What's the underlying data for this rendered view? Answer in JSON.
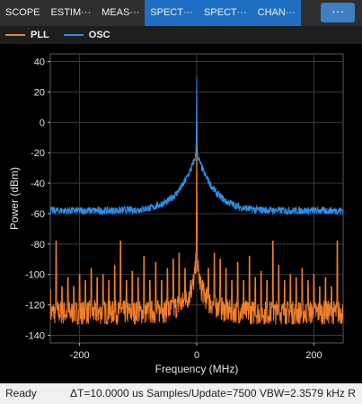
{
  "tabs": [
    {
      "label": "SCOPE",
      "active": false
    },
    {
      "label": "ESTIM···",
      "active": false
    },
    {
      "label": "MEAS···",
      "active": false
    },
    {
      "label": "SPECT···",
      "active": true
    },
    {
      "label": "SPECT···",
      "active": true
    },
    {
      "label": "CHAN···",
      "active": true
    }
  ],
  "more_button": {
    "label": "···"
  },
  "legend": [
    {
      "name": "PLL",
      "color": "#f07f2a"
    },
    {
      "name": "OSC",
      "color": "#2f8ee6"
    }
  ],
  "status": {
    "state": "Ready",
    "info": "ΔT=10.0000 us  Samples/Update=7500  VBW=2.3579 kHz  R"
  },
  "chart_data": {
    "type": "line",
    "xlabel": "Frequency (MHz)",
    "ylabel": "Power (dBm)",
    "xlim": [
      -250,
      250
    ],
    "ylim": [
      -145,
      45
    ],
    "xticks": [
      -200,
      0,
      200
    ],
    "yticks": [
      40,
      20,
      0,
      -20,
      -40,
      -60,
      -80,
      -100,
      -120,
      -140
    ],
    "grid": true,
    "background": "#000000",
    "series": [
      {
        "name": "OSC",
        "color": "#2f8ee6",
        "noise_floor": -58,
        "x": [
          -250,
          -200,
          -150,
          -100,
          -75,
          -50,
          -35,
          -25,
          -15,
          -8,
          -3,
          -1,
          0,
          1,
          3,
          8,
          15,
          25,
          35,
          50,
          75,
          100,
          150,
          200,
          250
        ],
        "y": [
          -58,
          -58,
          -58,
          -57.5,
          -56,
          -52,
          -47,
          -42,
          -35,
          -29,
          -24,
          -19,
          30,
          -19,
          -24,
          -29,
          -35,
          -42,
          -47,
          -52,
          -56,
          -57.5,
          -58,
          -58,
          -58
        ]
      },
      {
        "name": "PLL",
        "color": "#f07f2a",
        "noise_floor": -125,
        "x": [
          -250,
          -200,
          -100,
          -50,
          -20,
          -8,
          -3,
          -1,
          0,
          1,
          3,
          8,
          20,
          50,
          100,
          200,
          250
        ],
        "y": [
          -125,
          -125,
          -125,
          -124,
          -118,
          -110,
          -100,
          -90,
          0,
          -90,
          -100,
          -110,
          -118,
          -124,
          -125,
          -125,
          -125
        ],
        "spurs": [
          {
            "x": -250,
            "y": -110
          },
          {
            "x": -240,
            "y": -78
          },
          {
            "x": -230,
            "y": -108
          },
          {
            "x": -220,
            "y": -102
          },
          {
            "x": -210,
            "y": -108
          },
          {
            "x": -200,
            "y": -100
          },
          {
            "x": -190,
            "y": -104
          },
          {
            "x": -180,
            "y": -96
          },
          {
            "x": -170,
            "y": -102
          },
          {
            "x": -160,
            "y": -100
          },
          {
            "x": -150,
            "y": -104
          },
          {
            "x": -140,
            "y": -94
          },
          {
            "x": -130,
            "y": -78
          },
          {
            "x": -120,
            "y": -104
          },
          {
            "x": -110,
            "y": -98
          },
          {
            "x": -100,
            "y": -102
          },
          {
            "x": -90,
            "y": -88
          },
          {
            "x": -80,
            "y": -104
          },
          {
            "x": -70,
            "y": -92
          },
          {
            "x": -60,
            "y": -104
          },
          {
            "x": -50,
            "y": -96
          },
          {
            "x": -40,
            "y": -90
          },
          {
            "x": -30,
            "y": -86
          },
          {
            "x": -20,
            "y": -96
          },
          {
            "x": -10,
            "y": -104
          },
          {
            "x": 10,
            "y": -104
          },
          {
            "x": 20,
            "y": -96
          },
          {
            "x": 30,
            "y": -86
          },
          {
            "x": 40,
            "y": -90
          },
          {
            "x": 50,
            "y": -96
          },
          {
            "x": 60,
            "y": -104
          },
          {
            "x": 70,
            "y": -92
          },
          {
            "x": 80,
            "y": -104
          },
          {
            "x": 90,
            "y": -88
          },
          {
            "x": 100,
            "y": -102
          },
          {
            "x": 110,
            "y": -98
          },
          {
            "x": 120,
            "y": -104
          },
          {
            "x": 130,
            "y": -78
          },
          {
            "x": 140,
            "y": -94
          },
          {
            "x": 150,
            "y": -104
          },
          {
            "x": 160,
            "y": -100
          },
          {
            "x": 170,
            "y": -102
          },
          {
            "x": 180,
            "y": -96
          },
          {
            "x": 190,
            "y": -104
          },
          {
            "x": 200,
            "y": -100
          },
          {
            "x": 210,
            "y": -108
          },
          {
            "x": 220,
            "y": -102
          },
          {
            "x": 230,
            "y": -108
          },
          {
            "x": 240,
            "y": -78
          }
        ]
      }
    ]
  }
}
